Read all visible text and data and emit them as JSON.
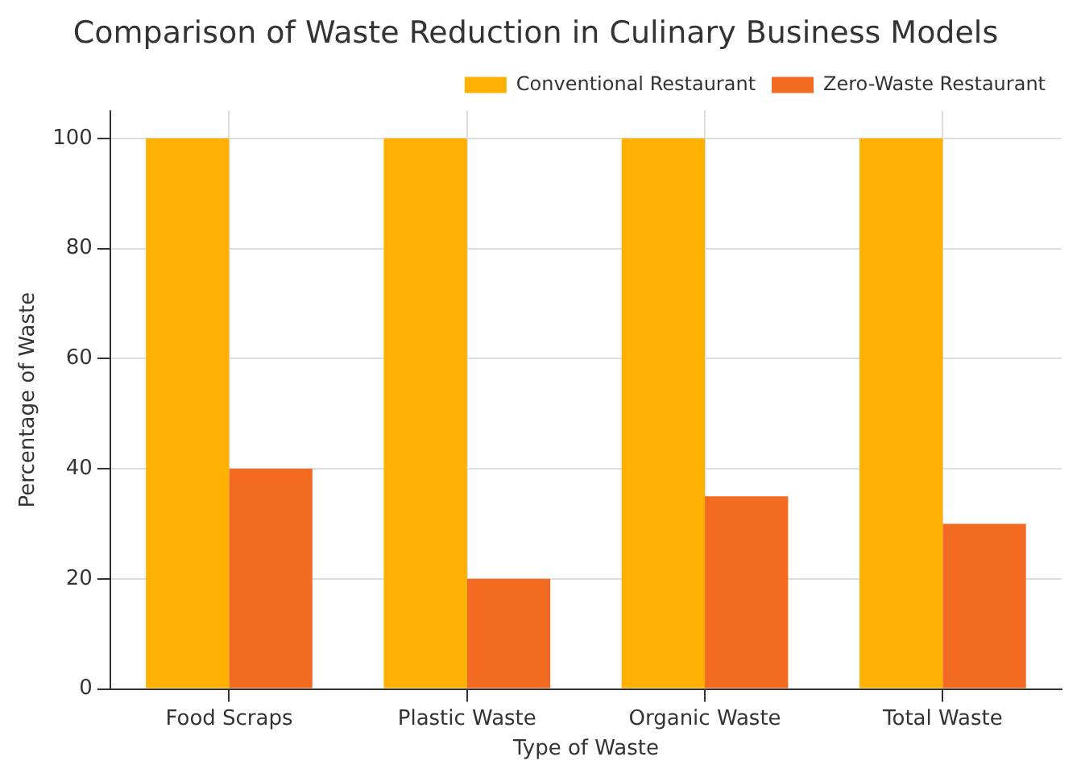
{
  "chart_data": {
    "type": "bar",
    "title": "Comparison of Waste Reduction in Culinary Business Models",
    "xlabel": "Type of Waste",
    "ylabel": "Percentage of Waste",
    "categories": [
      "Food Scraps",
      "Plastic Waste",
      "Organic Waste",
      "Total Waste"
    ],
    "series": [
      {
        "name": "Conventional Restaurant",
        "color": "#ffb000",
        "values": [
          100,
          100,
          100,
          100
        ]
      },
      {
        "name": "Zero-Waste Restaurant",
        "color": "#f26b21",
        "values": [
          40,
          20,
          35,
          30
        ]
      }
    ],
    "ylim": [
      0,
      105
    ],
    "yticks": [
      0,
      20,
      40,
      60,
      80,
      100
    ],
    "grid": true,
    "legend": "top right"
  }
}
